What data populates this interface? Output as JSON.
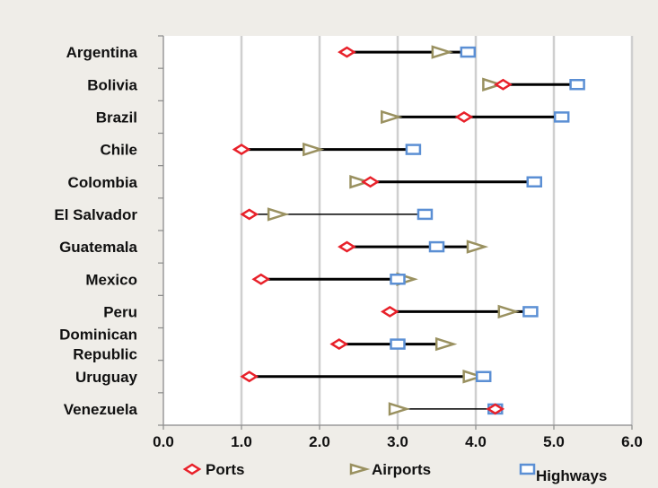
{
  "chart_data": {
    "type": "dot-range",
    "categories": [
      "Argentina",
      "Bolivia",
      "Brazil",
      "Chile",
      "Colombia",
      "El Salvador",
      "Guatemala",
      "Mexico",
      "Peru",
      "Dominican Republic",
      "Uruguay",
      "Venezuela"
    ],
    "category_lines": [
      [
        "Argentina"
      ],
      [
        "Bolivia"
      ],
      [
        "Brazil"
      ],
      [
        "Chile"
      ],
      [
        "Colombia"
      ],
      [
        "El Salvador"
      ],
      [
        "Guatemala"
      ],
      [
        "Mexico"
      ],
      [
        "Peru"
      ],
      [
        "Dominican",
        "Republic"
      ],
      [
        "Uruguay"
      ],
      [
        "Venezuela"
      ]
    ],
    "series": [
      {
        "name": "Ports",
        "marker": "diamond",
        "color": "#e8212a",
        "values": [
          2.35,
          4.35,
          3.85,
          1.0,
          2.65,
          1.1,
          2.35,
          1.25,
          2.9,
          2.25,
          1.1,
          4.25
        ]
      },
      {
        "name": "Airports",
        "marker": "triangle",
        "color": "#9a9160",
        "values": [
          3.55,
          4.2,
          2.9,
          1.9,
          2.5,
          1.45,
          4.0,
          3.1,
          4.4,
          3.6,
          3.95,
          3.0
        ]
      },
      {
        "name": "Highways",
        "marker": "rectangle",
        "color": "#5b8fd4",
        "values": [
          3.9,
          5.3,
          5.1,
          3.2,
          4.75,
          3.35,
          3.5,
          3.0,
          4.7,
          3.0,
          4.1,
          4.25
        ]
      }
    ],
    "x_ticks": [
      "0.0",
      "1.0",
      "2.0",
      "3.0",
      "4.0",
      "5.0",
      "6.0"
    ],
    "xlim": [
      0,
      6
    ],
    "grid": true,
    "legend_position": "bottom"
  }
}
